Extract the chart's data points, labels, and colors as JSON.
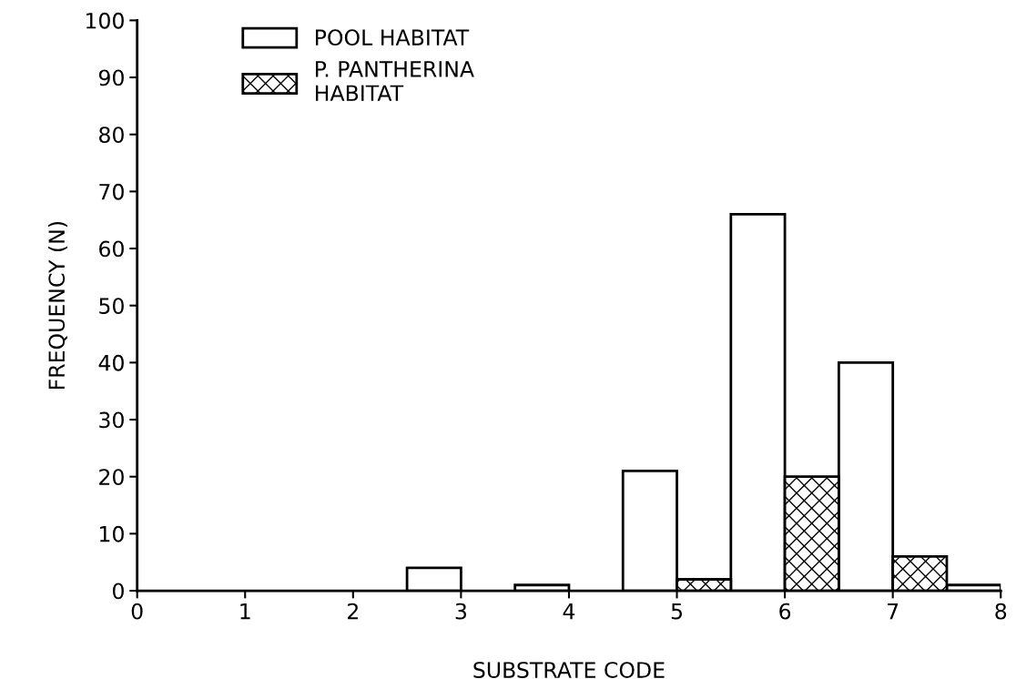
{
  "chart_data": {
    "type": "bar",
    "xlabel": "SUBSTRATE CODE",
    "ylabel": "FREQUENCY (N)",
    "series": [
      {
        "name": "POOL HABITAT",
        "color": "#ffffff",
        "x": [
          2.75,
          3.75,
          4.75,
          5.75,
          6.75,
          7.75
        ],
        "values": [
          4,
          1,
          21,
          66,
          40,
          1
        ]
      },
      {
        "name": "P. PANTHERINA\nHABITAT",
        "color": "#000000",
        "x": [
          5.25,
          6.25,
          7.25
        ],
        "values": [
          2,
          20,
          6
        ]
      }
    ],
    "xlim": [
      0,
      8
    ],
    "xticks": [
      0,
      1,
      2,
      3,
      4,
      5,
      6,
      7,
      8
    ],
    "ylim": [
      0,
      100
    ],
    "yticks": [
      0,
      10,
      20,
      30,
      40,
      50,
      60,
      70,
      80,
      90,
      100
    ],
    "grid": false,
    "legend": "top left"
  }
}
